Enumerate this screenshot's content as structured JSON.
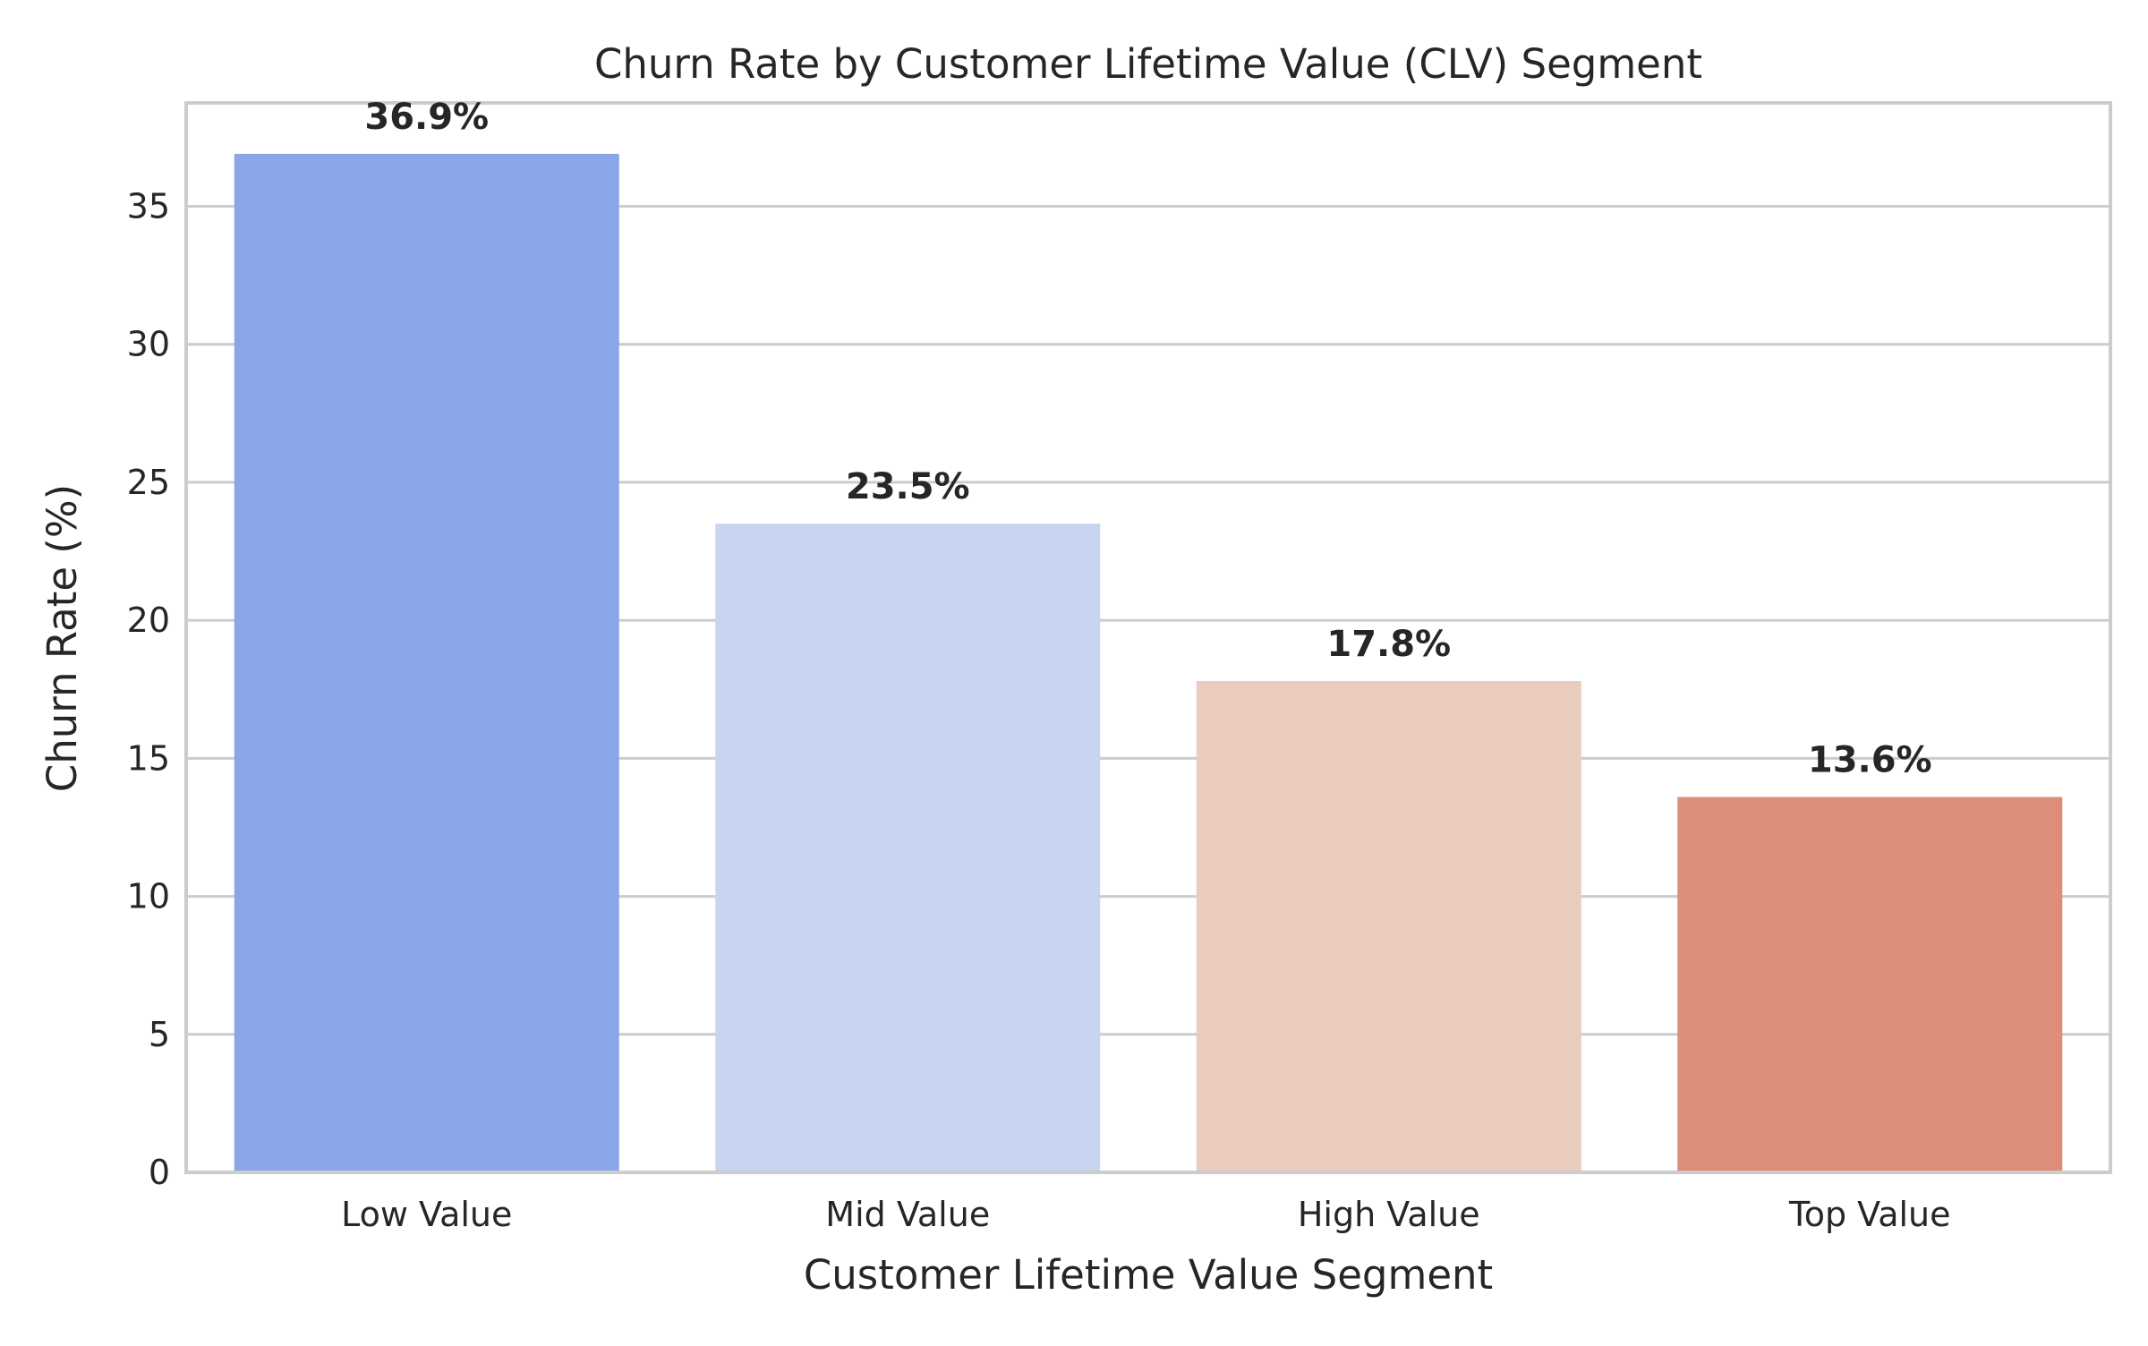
{
  "chart_data": {
    "type": "bar",
    "title": "Churn Rate by Customer Lifetime Value (CLV) Segment",
    "xlabel": "Customer Lifetime Value Segment",
    "ylabel": "Churn Rate (%)",
    "categories": [
      "Low Value",
      "Mid Value",
      "High Value",
      "Top Value"
    ],
    "values": [
      36.9,
      23.5,
      17.8,
      13.6
    ],
    "data_labels": [
      "36.9%",
      "23.5%",
      "17.8%",
      "13.6%"
    ],
    "colors": [
      "#8aa6e8",
      "#c7d5f0",
      "#eaccbf",
      "#dd8e78"
    ],
    "ylim": [
      0,
      38.745
    ],
    "yticks": [
      0,
      5,
      10,
      15,
      20,
      25,
      30,
      35
    ],
    "grid": "horizontal",
    "legend": "none"
  }
}
